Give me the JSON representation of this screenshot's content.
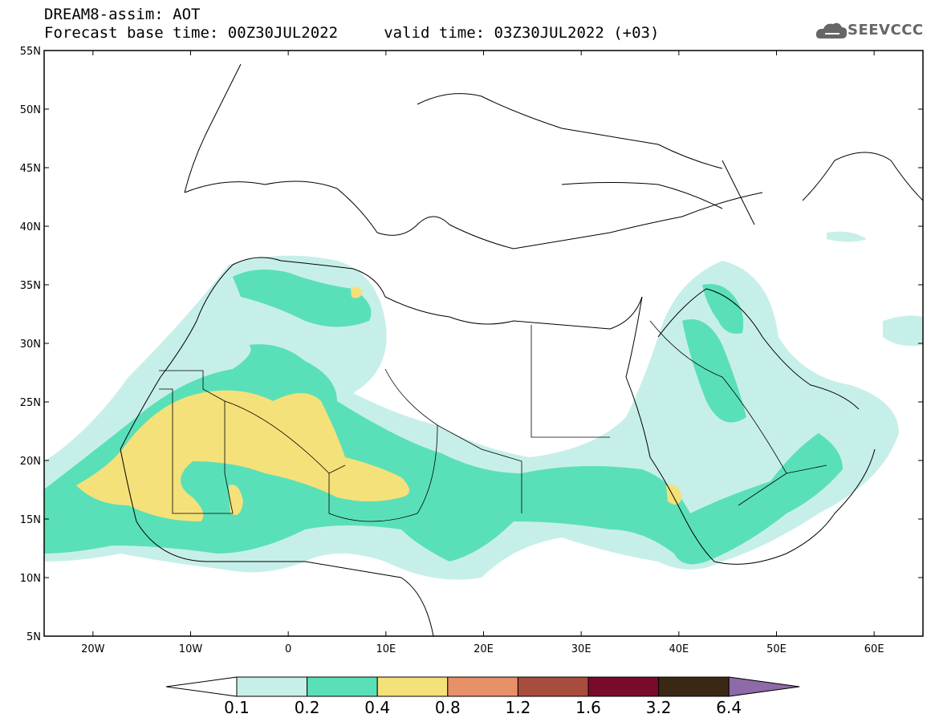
{
  "header": {
    "title_line1": "DREAM8-assim: AOT",
    "title_line2": "Forecast base time: 00Z30JUL2022     valid time: 03Z30JUL2022 (+03)",
    "logo_text": "SEEVCCC"
  },
  "map": {
    "lon_range": [
      -25,
      65
    ],
    "lat_range": [
      5,
      55
    ],
    "lat_ticks": [
      {
        "value": 55,
        "label": "55N"
      },
      {
        "value": 50,
        "label": "50N"
      },
      {
        "value": 45,
        "label": "45N"
      },
      {
        "value": 40,
        "label": "40N"
      },
      {
        "value": 35,
        "label": "35N"
      },
      {
        "value": 30,
        "label": "30N"
      },
      {
        "value": 25,
        "label": "25N"
      },
      {
        "value": 20,
        "label": "20N"
      },
      {
        "value": 15,
        "label": "15N"
      },
      {
        "value": 10,
        "label": "10N"
      },
      {
        "value": 5,
        "label": "5N"
      }
    ],
    "lon_ticks": [
      {
        "value": -20,
        "label": "20W"
      },
      {
        "value": -10,
        "label": "10W"
      },
      {
        "value": 0,
        "label": "0"
      },
      {
        "value": 10,
        "label": "10E"
      },
      {
        "value": 20,
        "label": "20E"
      },
      {
        "value": 30,
        "label": "30E"
      },
      {
        "value": 40,
        "label": "40E"
      },
      {
        "value": 50,
        "label": "50E"
      },
      {
        "value": 60,
        "label": "60E"
      }
    ]
  },
  "legend": {
    "labels": [
      "0.1",
      "0.2",
      "0.4",
      "0.8",
      "1.2",
      "1.6",
      "3.2",
      "6.4"
    ],
    "colors": [
      "#c7efe9",
      "#5ae0b8",
      "#f5e17a",
      "#e89068",
      "#a84c3e",
      "#7a0a2a",
      "#3a2815",
      "#8e6aa8"
    ]
  }
}
